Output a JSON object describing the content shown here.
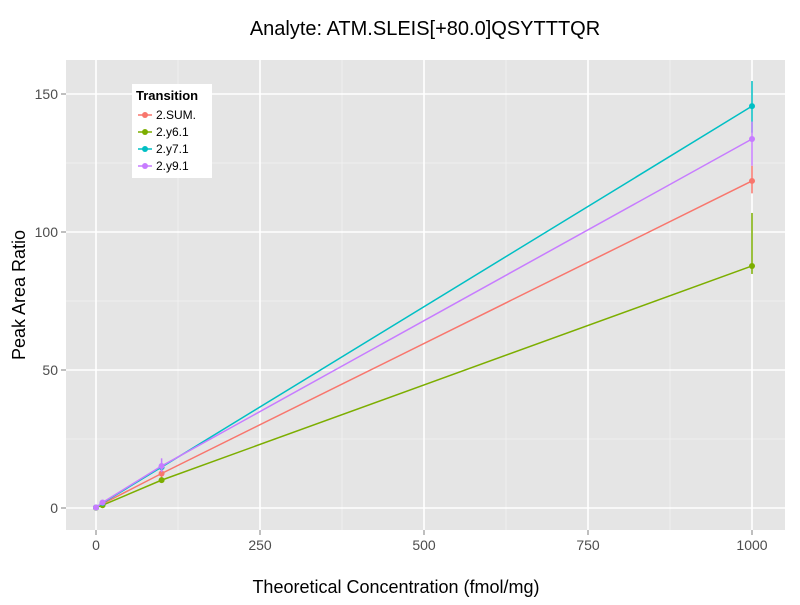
{
  "chart_data": {
    "type": "line",
    "title": "Analyte: ATM.SLEIS[+80.0]QSYTTTQR",
    "xlabel": "Theoretical Concentration (fmol/mg)",
    "ylabel": "Peak Area Ratio",
    "xlim": [
      -50,
      1050
    ],
    "ylim": [
      -8,
      162
    ],
    "xticks": [
      0,
      250,
      500,
      750,
      1000
    ],
    "yticks": [
      0,
      50,
      100,
      150
    ],
    "grid": true,
    "legend": {
      "title": "Transition",
      "placement": "top-left"
    },
    "x": [
      0,
      10,
      100,
      1000
    ],
    "series": [
      {
        "name": "2.SUM.",
        "color": "#F8766D",
        "values": [
          0.2,
          1.5,
          12.5,
          118.5
        ],
        "err_low": [
          0,
          1,
          11,
          114
        ],
        "err_high": [
          0.5,
          2,
          14,
          124
        ]
      },
      {
        "name": "2.y6.1",
        "color": "#7CAE00",
        "values": [
          0.1,
          1.0,
          10.1,
          87.7
        ],
        "err_low": [
          0,
          0.8,
          9.5,
          84.8
        ],
        "err_high": [
          0.3,
          1.3,
          10.8,
          106.9
        ]
      },
      {
        "name": "2.y7.1",
        "color": "#00BFC4",
        "values": [
          0.2,
          1.8,
          14.8,
          145.6
        ],
        "err_low": [
          0,
          1.5,
          13.5,
          136
        ],
        "err_high": [
          0.5,
          2.2,
          16,
          154.7
        ]
      },
      {
        "name": "2.y9.1",
        "color": "#C77CFF",
        "values": [
          0.2,
          2.0,
          15.2,
          133.7
        ],
        "err_low": [
          0,
          1.5,
          13,
          124
        ],
        "err_high": [
          0.5,
          2.8,
          18,
          140
        ]
      }
    ]
  }
}
